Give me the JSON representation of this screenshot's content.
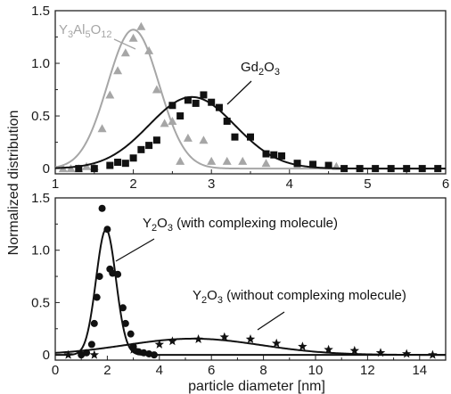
{
  "y_axis_label": "Normalized distribution",
  "x_axis_label": "particle diameter [nm]",
  "colors": {
    "black": "#111111",
    "gray": "#a6a6a6",
    "axis": "#222222"
  },
  "chart_data": [
    {
      "type": "scatter",
      "panel": "top",
      "xlim": [
        1,
        6
      ],
      "ylim": [
        -0.05,
        1.5
      ],
      "x_ticks": [
        1,
        2,
        3,
        4,
        5,
        6
      ],
      "y_ticks": [
        0,
        0.5,
        1.0,
        1.5
      ],
      "x_tick_labels": [
        "1",
        "2",
        "3",
        "4",
        "5",
        "6"
      ],
      "y_tick_labels": [
        "0",
        "0.5",
        "1.0",
        "1.5"
      ],
      "grid": false,
      "series": [
        {
          "name": "Y3Al5O12",
          "color": "#a6a6a6",
          "marker": "triangle",
          "points": [
            [
              1.1,
              0.0
            ],
            [
              1.2,
              0.0
            ],
            [
              1.3,
              0.0
            ],
            [
              1.4,
              0.02
            ],
            [
              1.5,
              0.02
            ],
            [
              1.6,
              0.38
            ],
            [
              1.7,
              0.7
            ],
            [
              1.8,
              0.93
            ],
            [
              1.9,
              1.1
            ],
            [
              2.0,
              1.24
            ],
            [
              2.1,
              1.35
            ],
            [
              2.2,
              1.12
            ],
            [
              2.3,
              0.75
            ],
            [
              2.4,
              0.43
            ],
            [
              2.5,
              0.45
            ],
            [
              2.6,
              0.07
            ],
            [
              2.7,
              0.29
            ],
            [
              2.9,
              0.27
            ],
            [
              3.0,
              0.07
            ],
            [
              3.2,
              0.07
            ],
            [
              3.4,
              0.07
            ],
            [
              3.7,
              0.05
            ],
            [
              4.1,
              0.03
            ],
            [
              4.6,
              0.02
            ]
          ],
          "fit_curve": {
            "peak": 1.32,
            "center": 2.0,
            "sigma": 0.33
          }
        },
        {
          "name": "Gd2O3",
          "color": "#111111",
          "marker": "square",
          "points": [
            [
              1.3,
              0.0
            ],
            [
              1.5,
              0.0
            ],
            [
              1.7,
              0.03
            ],
            [
              1.8,
              0.06
            ],
            [
              1.9,
              0.05
            ],
            [
              2.0,
              0.1
            ],
            [
              2.1,
              0.18
            ],
            [
              2.2,
              0.22
            ],
            [
              2.3,
              0.27
            ],
            [
              2.5,
              0.6
            ],
            [
              2.6,
              0.5
            ],
            [
              2.7,
              0.65
            ],
            [
              2.8,
              0.62
            ],
            [
              2.9,
              0.7
            ],
            [
              3.0,
              0.63
            ],
            [
              3.1,
              0.58
            ],
            [
              3.2,
              0.45
            ],
            [
              3.3,
              0.3
            ],
            [
              3.5,
              0.3
            ],
            [
              3.7,
              0.14
            ],
            [
              3.8,
              0.13
            ],
            [
              3.9,
              0.12
            ],
            [
              4.1,
              0.05
            ],
            [
              4.3,
              0.04
            ],
            [
              4.5,
              0.03
            ],
            [
              4.7,
              0.0
            ],
            [
              4.9,
              0.0
            ],
            [
              5.1,
              0.0
            ],
            [
              5.3,
              0.0
            ],
            [
              5.5,
              0.0
            ],
            [
              5.7,
              0.0
            ],
            [
              5.9,
              0.0
            ]
          ],
          "fit_curve": {
            "peak": 0.68,
            "center": 2.75,
            "sigma": 0.55
          }
        }
      ],
      "annotations": [
        {
          "label": "Y3Al5O12",
          "parts": [
            [
              "Y",
              false
            ],
            [
              "3",
              true
            ],
            [
              "Al",
              false
            ],
            [
              "5",
              true
            ],
            [
              "O",
              false
            ],
            [
              "12",
              true
            ]
          ],
          "color": "#a6a6a6"
        },
        {
          "label": "Gd2O3",
          "parts": [
            [
              "Gd",
              false
            ],
            [
              "2",
              true
            ],
            [
              "O",
              false
            ],
            [
              "3",
              true
            ]
          ],
          "color": "#111111"
        }
      ]
    },
    {
      "type": "scatter",
      "panel": "bottom",
      "xlim": [
        0,
        15
      ],
      "ylim": [
        -0.05,
        1.5
      ],
      "x_ticks": [
        0,
        2,
        4,
        6,
        8,
        10,
        12,
        14
      ],
      "y_ticks": [
        0,
        0.5,
        1.0,
        1.5
      ],
      "x_tick_labels": [
        "0",
        "2",
        "4",
        "6",
        "8",
        "10",
        "12",
        "14"
      ],
      "y_tick_labels": [
        "0",
        "0.5",
        "1.0",
        "1.5"
      ],
      "grid": false,
      "series": [
        {
          "name": "Y2O3 (with complexing molecule)",
          "color": "#111111",
          "marker": "circle",
          "points": [
            [
              1.0,
              0.0
            ],
            [
              1.2,
              0.02
            ],
            [
              1.4,
              0.1
            ],
            [
              1.5,
              0.3
            ],
            [
              1.6,
              0.55
            ],
            [
              1.7,
              0.75
            ],
            [
              1.8,
              1.4
            ],
            [
              2.0,
              1.2
            ],
            [
              2.1,
              0.82
            ],
            [
              2.2,
              0.78
            ],
            [
              2.4,
              0.77
            ],
            [
              2.6,
              0.45
            ],
            [
              2.7,
              0.3
            ],
            [
              2.9,
              0.2
            ],
            [
              3.0,
              0.08
            ],
            [
              3.2,
              0.03
            ],
            [
              3.4,
              0.02
            ],
            [
              3.6,
              0.01
            ],
            [
              3.8,
              0.0
            ]
          ],
          "fit_curve": {
            "peak": 1.2,
            "center": 1.95,
            "sigma": 0.38
          }
        },
        {
          "name": "Y2O3 (without complexing molecule)",
          "color": "#111111",
          "marker": "star",
          "points": [
            [
              0.5,
              0.0
            ],
            [
              1.5,
              0.0
            ],
            [
              3.0,
              0.05
            ],
            [
              4.0,
              0.1
            ],
            [
              4.5,
              0.13
            ],
            [
              5.5,
              0.15
            ],
            [
              6.5,
              0.17
            ],
            [
              7.5,
              0.15
            ],
            [
              8.5,
              0.11
            ],
            [
              9.5,
              0.08
            ],
            [
              10.5,
              0.05
            ],
            [
              11.5,
              0.04
            ],
            [
              12.5,
              0.02
            ],
            [
              13.5,
              0.01
            ],
            [
              14.5,
              0.0
            ]
          ],
          "fit_curve": {
            "peak": 0.155,
            "center": 5.3,
            "sigma": 2.6
          }
        }
      ],
      "annotations": [
        {
          "label": "Y2O3 (with complexing molecule)",
          "parts": [
            [
              "Y",
              false
            ],
            [
              "2",
              true
            ],
            [
              "O",
              false
            ],
            [
              "3",
              true
            ],
            [
              " (with complexing molecule)",
              false
            ]
          ],
          "color": "#111111"
        },
        {
          "label": "Y2O3 (without complexing molecule)",
          "parts": [
            [
              "Y",
              false
            ],
            [
              "2",
              true
            ],
            [
              "O",
              false
            ],
            [
              "3",
              true
            ],
            [
              " (without complexing molecule)",
              false
            ]
          ],
          "color": "#111111"
        }
      ]
    }
  ]
}
